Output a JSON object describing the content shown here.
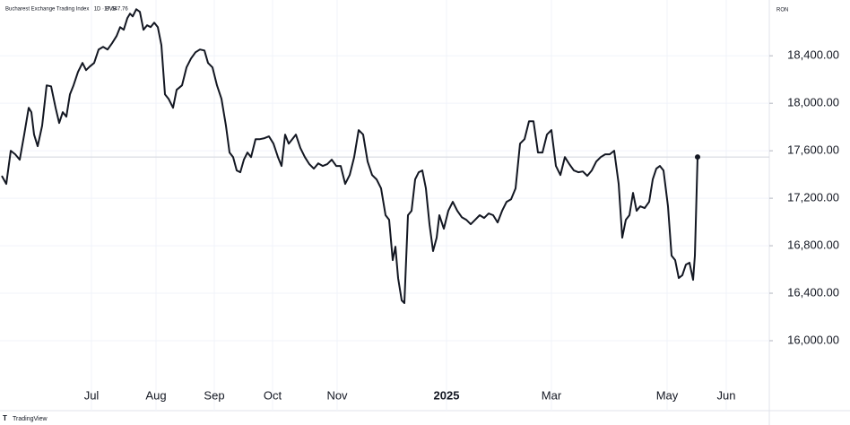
{
  "chart_data": {
    "type": "line",
    "title": "Bucharest Exchange Trading Index · 1D · BVB",
    "last_price": {
      "value": 17547.76,
      "label": "17,547.76"
    },
    "y_axis_label": "RON",
    "watermark": "TradingView",
    "color": "#131722",
    "grid": true,
    "x": [
      2,
      7,
      12,
      17,
      22,
      27,
      32,
      35,
      38,
      42,
      47,
      52,
      57,
      62,
      66,
      70,
      74,
      78,
      82,
      87,
      92,
      96,
      100,
      105,
      110,
      115,
      120,
      125,
      130,
      134,
      138,
      142,
      145,
      148,
      152,
      156,
      160,
      164,
      168,
      172,
      176,
      180,
      184,
      188,
      193,
      197,
      203,
      208,
      213,
      218,
      223,
      228,
      232,
      237,
      242,
      247,
      252,
      256,
      260,
      264,
      268,
      272,
      276,
      280,
      285,
      290,
      295,
      300,
      305,
      310,
      314,
      318,
      322,
      326,
      330,
      335,
      340,
      345,
      350,
      355,
      360,
      365,
      370,
      375,
      380,
      385,
      390,
      395,
      400,
      405,
      410,
      415,
      420,
      425,
      430,
      434,
      438,
      441,
      444,
      448,
      451,
      455,
      459,
      463,
      467,
      471,
      475,
      479,
      483,
      487,
      490,
      495,
      500,
      505,
      510,
      515,
      520,
      525,
      530,
      535,
      540,
      545,
      550,
      555,
      560,
      565,
      570,
      575,
      580,
      585,
      590,
      595,
      600,
      605,
      610,
      615,
      620,
      625,
      630,
      635,
      640,
      645,
      650,
      655,
      660,
      665,
      670,
      675,
      680,
      685,
      690,
      694,
      698,
      702,
      706,
      710,
      714,
      719,
      724,
      728,
      732,
      736,
      740,
      745,
      749,
      753,
      757,
      761,
      765,
      769,
      773,
      775,
      778
    ],
    "values": [
      17389,
      17321,
      17600,
      17570,
      17525,
      17736,
      17962,
      17925,
      17736,
      17638,
      17811,
      18151,
      18143,
      17962,
      17834,
      17925,
      17887,
      18075,
      18151,
      18264,
      18340,
      18279,
      18309,
      18340,
      18453,
      18475,
      18453,
      18506,
      18566,
      18641,
      18619,
      18717,
      18755,
      18732,
      18792,
      18770,
      18619,
      18657,
      18642,
      18679,
      18642,
      18490,
      18075,
      18038,
      17962,
      18113,
      18151,
      18302,
      18377,
      18430,
      18453,
      18445,
      18340,
      18302,
      18151,
      18038,
      17811,
      17585,
      17547,
      17434,
      17419,
      17525,
      17585,
      17547,
      17698,
      17698,
      17706,
      17721,
      17660,
      17547,
      17472,
      17736,
      17660,
      17698,
      17736,
      17623,
      17547,
      17487,
      17449,
      17494,
      17472,
      17487,
      17525,
      17472,
      17472,
      17321,
      17396,
      17547,
      17774,
      17736,
      17509,
      17396,
      17359,
      17283,
      17057,
      17019,
      16679,
      16792,
      16528,
      16340,
      16317,
      17057,
      17094,
      17359,
      17419,
      17434,
      17283,
      16981,
      16755,
      16868,
      17057,
      16943,
      17094,
      17170,
      17094,
      17041,
      17019,
      16981,
      17019,
      17057,
      17034,
      17072,
      17057,
      16996,
      17094,
      17170,
      17192,
      17283,
      17660,
      17698,
      17849,
      17849,
      17585,
      17585,
      17736,
      17774,
      17472,
      17396,
      17547,
      17487,
      17434,
      17419,
      17426,
      17389,
      17434,
      17509,
      17547,
      17570,
      17570,
      17600,
      17321,
      16868,
      17019,
      17057,
      17245,
      17094,
      17132,
      17117,
      17170,
      17359,
      17449,
      17472,
      17434,
      17132,
      16717,
      16679,
      16528,
      16551,
      16641,
      16657,
      16513,
      16717,
      17547.76
    ],
    "xlim": [
      0,
      858
    ],
    "xticks": [
      {
        "value": 102,
        "label": "Jul"
      },
      {
        "value": 174,
        "label": "Aug"
      },
      {
        "value": 239,
        "label": "Sep"
      },
      {
        "value": 304,
        "label": "Oct"
      },
      {
        "value": 376,
        "label": "Nov"
      },
      {
        "value": 498,
        "label": "2025"
      },
      {
        "value": 615,
        "label": "Mar"
      },
      {
        "value": 744,
        "label": "May"
      },
      {
        "value": 810,
        "label": "Jun"
      }
    ],
    "ylim": [
      15660,
      18870
    ],
    "yticks": [
      {
        "value": 16000,
        "label": "16,000.00"
      },
      {
        "value": 16400,
        "label": "16,400.00"
      },
      {
        "value": 16800,
        "label": "16,800.00"
      },
      {
        "value": 17200,
        "label": "17,200.00"
      },
      {
        "value": 17600,
        "label": "17,600.00"
      },
      {
        "value": 18000,
        "label": "18,000.00"
      },
      {
        "value": 18400,
        "label": "18,400.00"
      }
    ]
  }
}
